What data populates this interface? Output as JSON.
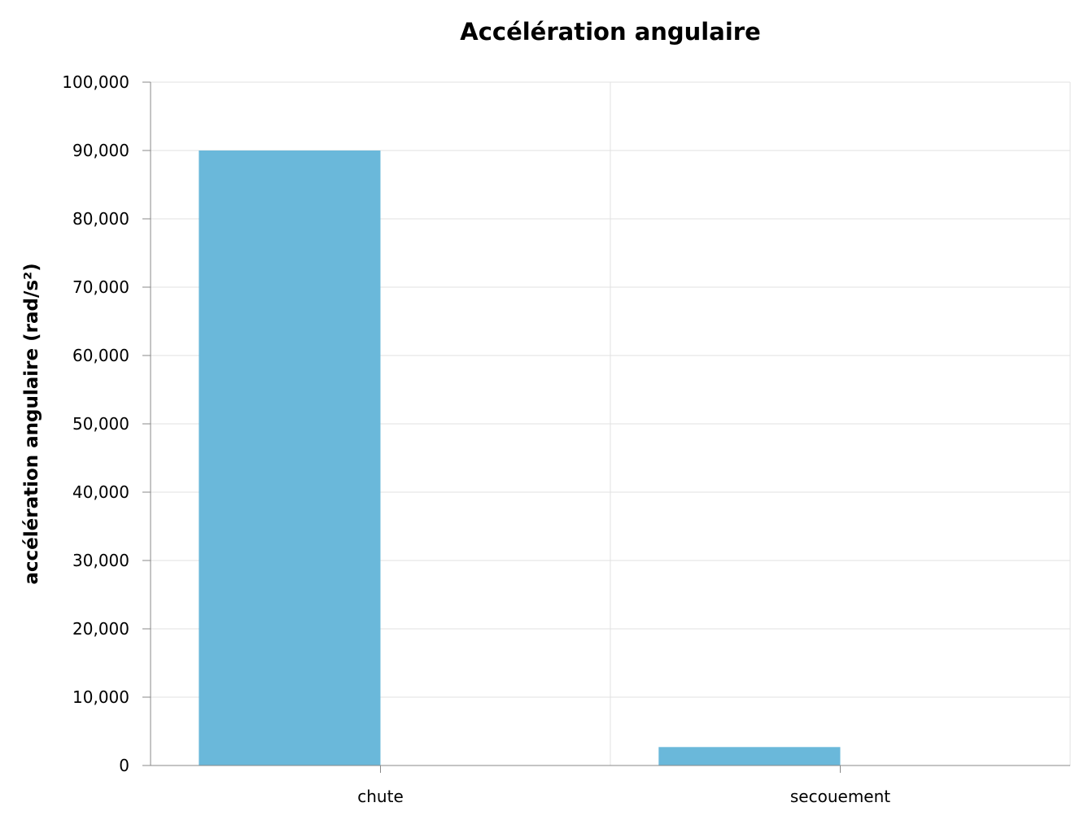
{
  "chart_data": {
    "type": "bar",
    "title": "Accélération angulaire",
    "xlabel": "",
    "ylabel": "accélération angulaire (rad/s²)",
    "categories": [
      "chute",
      "secouement"
    ],
    "series": [
      {
        "values": [
          90000,
          2700
        ]
      }
    ],
    "ylim": [
      0,
      100000
    ],
    "yticks": [
      0,
      10000,
      20000,
      30000,
      40000,
      50000,
      60000,
      70000,
      80000,
      90000,
      100000
    ],
    "ytick_labels": [
      "0",
      "10,000",
      "20,000",
      "30,000",
      "40,000",
      "50,000",
      "60,000",
      "70,000",
      "80,000",
      "90,000",
      "100,000"
    ],
    "grid": true,
    "legend": "none",
    "bar_color": "#6ab8da"
  }
}
